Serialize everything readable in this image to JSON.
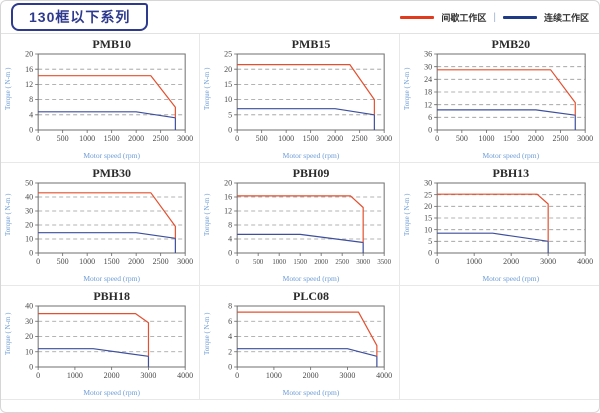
{
  "header": {
    "title": "130框以下系列",
    "separator": "|",
    "legend": [
      {
        "label": "间歇工作区",
        "color": "#e23a1d"
      },
      {
        "label": "连续工作区",
        "color": "#1f3b85"
      }
    ]
  },
  "axis": {
    "x_label": "Motor speed (rpm)",
    "y_label": "Torque ( N-m )"
  },
  "colors": {
    "line_red": "#e4502f",
    "line_blue": "#3d4f9d",
    "grid": "#9a9a9a",
    "plot_border": "#6f6f6f",
    "tick_text": "#4a4a4a",
    "axis_label_blue": "#6d9cd6",
    "accent_navy": "#2d3a8e"
  },
  "chart_data": [
    {
      "type": "line",
      "title": "PMB10",
      "xlabel": "Motor speed (rpm)",
      "ylabel": "Torque ( N-m )",
      "xlim": [
        0,
        3000
      ],
      "ylim": [
        0,
        20
      ],
      "xticks": [
        0,
        500,
        1000,
        1500,
        2000,
        2500,
        3000
      ],
      "yticks": [
        0,
        4,
        8,
        12,
        16,
        20
      ],
      "series": [
        {
          "name": "间歇工作区",
          "color": "#e4502f",
          "points": [
            [
              0,
              14.3
            ],
            [
              2300,
              14.3
            ],
            [
              2800,
              6
            ],
            [
              2800,
              3.2
            ]
          ]
        },
        {
          "name": "连续工作区",
          "color": "#3d4f9d",
          "points": [
            [
              0,
              4.8
            ],
            [
              2000,
              4.8
            ],
            [
              2800,
              3.2
            ],
            [
              2800,
              0
            ]
          ]
        }
      ]
    },
    {
      "type": "line",
      "title": "PMB15",
      "xlabel": "Motor speed (rpm)",
      "ylabel": "Torque ( N-m )",
      "xlim": [
        0,
        3000
      ],
      "ylim": [
        0,
        25
      ],
      "xticks": [
        0,
        500,
        1000,
        1500,
        2000,
        2500,
        3000
      ],
      "yticks": [
        0,
        5,
        10,
        15,
        20,
        25
      ],
      "series": [
        {
          "name": "间歇工作区",
          "color": "#e4502f",
          "points": [
            [
              0,
              21.5
            ],
            [
              2300,
              21.5
            ],
            [
              2800,
              10
            ],
            [
              2800,
              5
            ]
          ]
        },
        {
          "name": "连续工作区",
          "color": "#3d4f9d",
          "points": [
            [
              0,
              7
            ],
            [
              2000,
              7
            ],
            [
              2800,
              5
            ],
            [
              2800,
              0
            ]
          ]
        }
      ]
    },
    {
      "type": "line",
      "title": "PMB20",
      "xlabel": "Motor speed (rpm)",
      "ylabel": "Torque ( N-m )",
      "xlim": [
        0,
        3000
      ],
      "ylim": [
        0,
        36
      ],
      "xticks": [
        0,
        500,
        1000,
        1500,
        2000,
        2500,
        3000
      ],
      "yticks": [
        0,
        6,
        12,
        18,
        24,
        30,
        36
      ],
      "series": [
        {
          "name": "间歇工作区",
          "color": "#e4502f",
          "points": [
            [
              0,
              28.5
            ],
            [
              2300,
              28.5
            ],
            [
              2800,
              13
            ],
            [
              2800,
              7
            ]
          ]
        },
        {
          "name": "连续工作区",
          "color": "#3d4f9d",
          "points": [
            [
              0,
              9.5
            ],
            [
              2000,
              9.5
            ],
            [
              2800,
              7
            ],
            [
              2800,
              0
            ]
          ]
        }
      ]
    },
    {
      "type": "line",
      "title": "PMB30",
      "xlabel": "Motor speed (rpm)",
      "ylabel": "Torque ( N-m )",
      "xlim": [
        0,
        3000
      ],
      "ylim": [
        0,
        50
      ],
      "xticks": [
        0,
        500,
        1000,
        1500,
        2000,
        2500,
        3000
      ],
      "yticks": [
        0,
        10,
        20,
        30,
        40,
        50
      ],
      "series": [
        {
          "name": "间歇工作区",
          "color": "#e4502f",
          "points": [
            [
              0,
              43
            ],
            [
              2300,
              43
            ],
            [
              2800,
              19
            ],
            [
              2800,
              10.5
            ]
          ]
        },
        {
          "name": "连续工作区",
          "color": "#3d4f9d",
          "points": [
            [
              0,
              14.5
            ],
            [
              2000,
              14.5
            ],
            [
              2800,
              10.5
            ],
            [
              2800,
              0
            ]
          ]
        }
      ]
    },
    {
      "type": "line",
      "title": "PBH09",
      "xlabel": "Motor speed (rpm)",
      "ylabel": "Torque ( N-m )",
      "xlim": [
        0,
        3500
      ],
      "ylim": [
        0,
        20
      ],
      "xticks": [
        0,
        500,
        1000,
        1500,
        2000,
        2500,
        3000,
        3500
      ],
      "yticks": [
        0,
        4,
        8,
        12,
        16,
        20
      ],
      "series": [
        {
          "name": "间歇工作区",
          "color": "#e4502f",
          "points": [
            [
              0,
              16.3
            ],
            [
              2700,
              16.3
            ],
            [
              3000,
              13
            ],
            [
              3000,
              3
            ]
          ]
        },
        {
          "name": "连续工作区",
          "color": "#3d4f9d",
          "points": [
            [
              0,
              5.3
            ],
            [
              1500,
              5.3
            ],
            [
              3000,
              3
            ],
            [
              3000,
              0
            ]
          ]
        }
      ]
    },
    {
      "type": "line",
      "title": "PBH13",
      "xlabel": "Motor speed (rpm)",
      "ylabel": "Torque ( N-m )",
      "xlim": [
        0,
        4000
      ],
      "ylim": [
        0,
        30
      ],
      "xticks": [
        0,
        1000,
        2000,
        3000,
        4000
      ],
      "yticks": [
        0,
        5,
        10,
        15,
        20,
        25,
        30
      ],
      "series": [
        {
          "name": "间歇工作区",
          "color": "#e4502f",
          "points": [
            [
              0,
              25.2
            ],
            [
              2700,
              25.2
            ],
            [
              3000,
              21
            ],
            [
              3000,
              5
            ]
          ]
        },
        {
          "name": "连续工作区",
          "color": "#3d4f9d",
          "points": [
            [
              0,
              8.5
            ],
            [
              1500,
              8.5
            ],
            [
              3000,
              5
            ],
            [
              3000,
              0
            ]
          ]
        }
      ]
    },
    {
      "type": "line",
      "title": "PBH18",
      "xlabel": "Motor speed (rpm)",
      "ylabel": "Torque ( N-m )",
      "xlim": [
        0,
        4000
      ],
      "ylim": [
        0,
        40
      ],
      "xticks": [
        0,
        1000,
        2000,
        3000,
        4000
      ],
      "yticks": [
        0,
        10,
        20,
        30,
        40
      ],
      "series": [
        {
          "name": "间歇工作区",
          "color": "#e4502f",
          "points": [
            [
              0,
              35
            ],
            [
              2650,
              35
            ],
            [
              3000,
              29
            ],
            [
              3000,
              7
            ]
          ]
        },
        {
          "name": "连续工作区",
          "color": "#3d4f9d",
          "points": [
            [
              0,
              12
            ],
            [
              1500,
              12
            ],
            [
              3000,
              7
            ],
            [
              3000,
              0
            ]
          ]
        }
      ]
    },
    {
      "type": "line",
      "title": "PLC08",
      "xlabel": "Motor speed (rpm)",
      "ylabel": "Torque ( N-m )",
      "xlim": [
        0,
        4000
      ],
      "ylim": [
        0,
        8
      ],
      "xticks": [
        0,
        1000,
        2000,
        3000,
        4000
      ],
      "yticks": [
        0,
        2,
        4,
        6,
        8
      ],
      "series": [
        {
          "name": "间歇工作区",
          "color": "#e4502f",
          "points": [
            [
              0,
              7.2
            ],
            [
              3300,
              7.2
            ],
            [
              3800,
              2.8
            ],
            [
              3800,
              1.4
            ]
          ]
        },
        {
          "name": "连续工作区",
          "color": "#3d4f9d",
          "points": [
            [
              0,
              2.4
            ],
            [
              3000,
              2.4
            ],
            [
              3800,
              1.4
            ],
            [
              3800,
              0
            ]
          ]
        }
      ]
    }
  ]
}
